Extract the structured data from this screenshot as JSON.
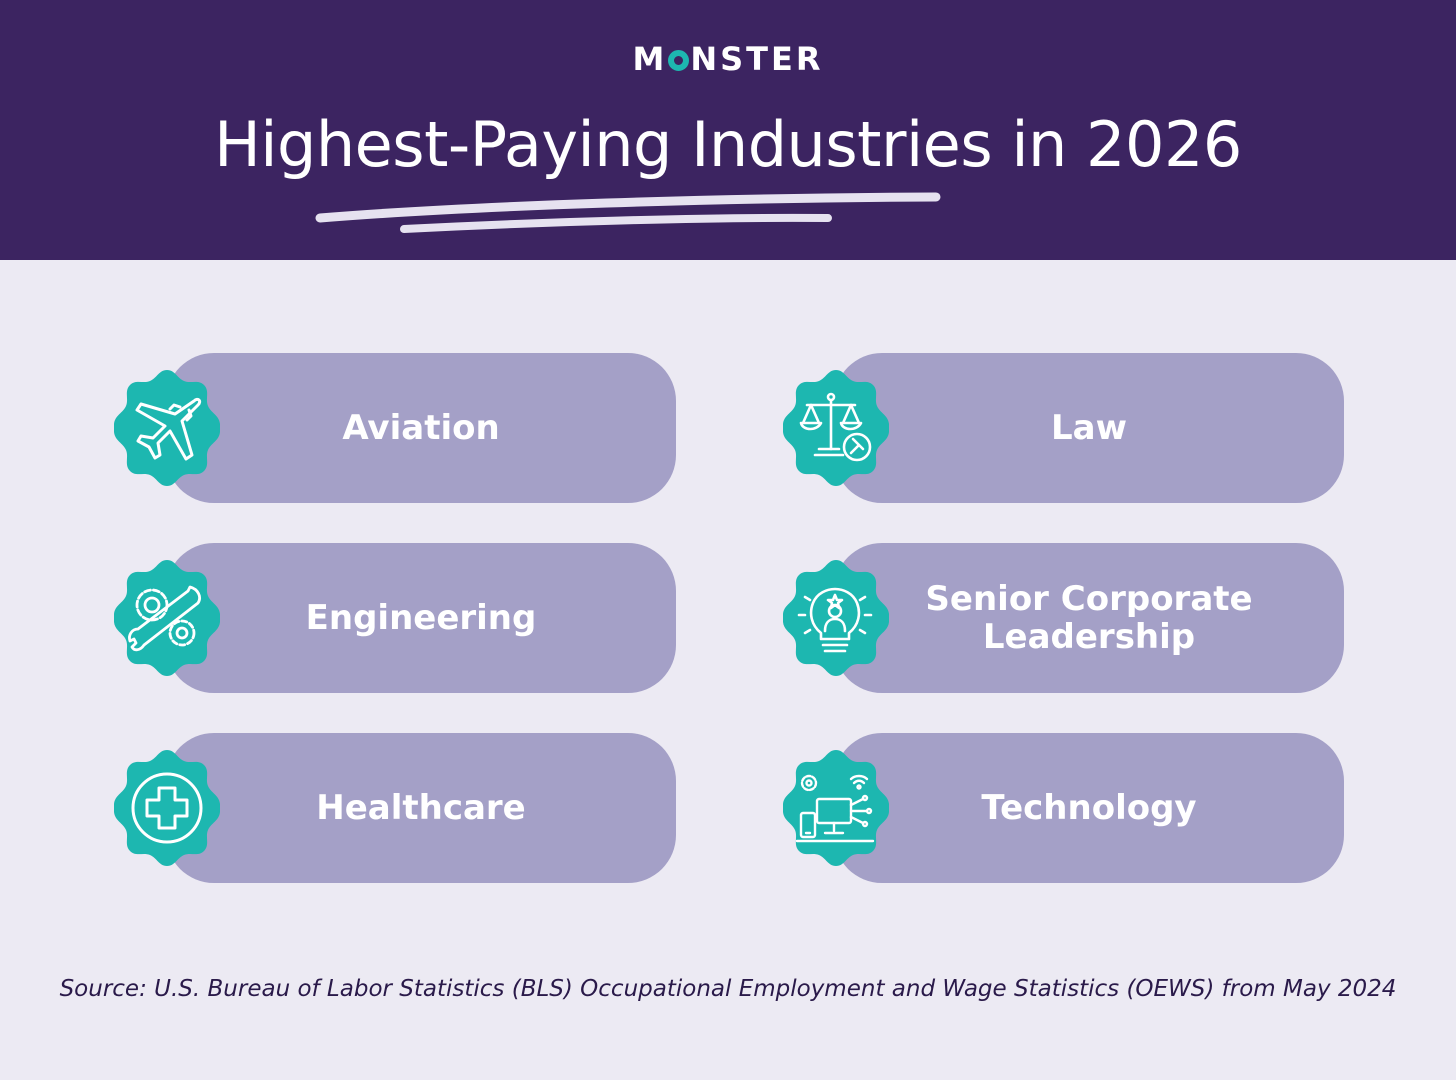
{
  "header": {
    "logo_left": "M",
    "logo_right": "NSTER",
    "title": "Highest-Paying Industries in 2026"
  },
  "industries": [
    {
      "label": "Aviation",
      "icon": "airplane-icon"
    },
    {
      "label": "Law",
      "icon": "scales-of-justice-icon"
    },
    {
      "label": "Engineering",
      "icon": "gear-wrench-icon"
    },
    {
      "label": "Senior Corporate Leadership",
      "icon": "lightbulb-leader-icon"
    },
    {
      "label": "Healthcare",
      "icon": "medical-cross-icon"
    },
    {
      "label": "Technology",
      "icon": "devices-network-icon"
    }
  ],
  "source": "Source: U.S. Bureau of Labor Statistics (BLS) Occupational Employment and Wage Statistics (OEWS) from May 2024",
  "colors": {
    "header_bg": "#3C2461",
    "page_bg": "#ECEAF3",
    "card_bg": "#A4A0C7",
    "badge": "#1DB7B0",
    "text_light": "#FFFFFF"
  }
}
